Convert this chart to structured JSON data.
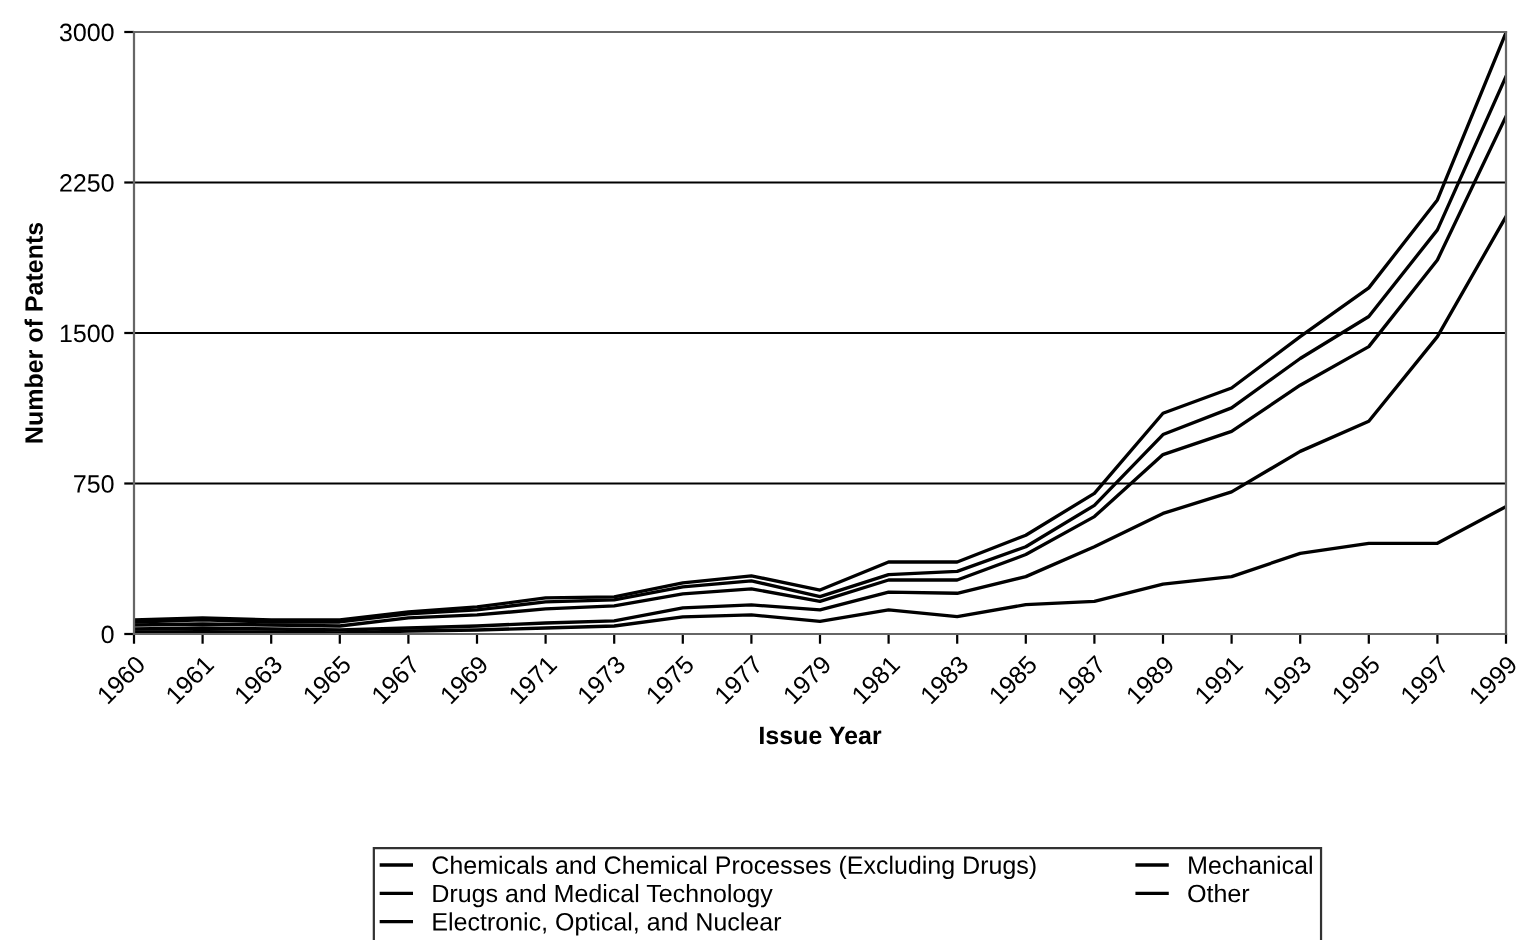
{
  "chart_data": {
    "type": "line",
    "xlabel": "Issue Year",
    "ylabel": "Number of Patents",
    "categories": [
      "1960",
      "1961",
      "1963",
      "1965",
      "1967",
      "1969",
      "1971",
      "1973",
      "1975",
      "1977",
      "1979",
      "1981",
      "1983",
      "1985",
      "1987",
      "1989",
      "1991",
      "1993",
      "1995",
      "1997",
      "1999"
    ],
    "series": [
      {
        "name": "Chemicals and Chemical Processes (Excluding Drugs)",
        "color": "#000000",
        "values": [
          70,
          80,
          70,
          70,
          110,
          135,
          180,
          185,
          255,
          290,
          219,
          359,
          359,
          492,
          701,
          1100,
          1226,
          1482,
          1725,
          2163,
          2997
        ]
      },
      {
        "name": "Drugs and Medical Technology",
        "color": "#000000",
        "values": [
          60,
          70,
          60,
          60,
          100,
          120,
          160,
          170,
          235,
          265,
          186,
          296,
          312,
          435,
          641,
          994,
          1127,
          1373,
          1582,
          2014,
          2779
        ]
      },
      {
        "name": "Electronic, Optical, and Nuclear",
        "color": "#000000",
        "values": [
          45,
          50,
          45,
          40,
          80,
          95,
          125,
          140,
          200,
          225,
          163,
          269,
          269,
          396,
          585,
          894,
          1010,
          1240,
          1432,
          1864,
          2579
        ]
      },
      {
        "name": "Mechanical",
        "color": "#000000",
        "values": [
          25,
          30,
          25,
          20,
          30,
          40,
          55,
          65,
          130,
          145,
          120,
          209,
          203,
          286,
          435,
          601,
          708,
          910,
          1060,
          1482,
          2080
        ]
      },
      {
        "name": "Other",
        "color": "#000000",
        "values": [
          10,
          12,
          10,
          5,
          15,
          20,
          30,
          40,
          85,
          95,
          63,
          120,
          87,
          146,
          163,
          249,
          286,
          402,
          452,
          452,
          635
        ]
      }
    ],
    "ylim": [
      0,
      3000
    ],
    "yticks": [
      0,
      750,
      1500,
      2250,
      3000
    ],
    "grid": "y",
    "legend": "bottom",
    "marker": "none",
    "line_style": "solid"
  }
}
